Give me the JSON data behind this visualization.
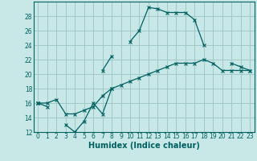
{
  "xlabel": "Humidex (Indice chaleur)",
  "bg_color": "#c8e8e8",
  "grid_color": "#a0c8c8",
  "line_color": "#006060",
  "x_values": [
    0,
    1,
    2,
    3,
    4,
    5,
    6,
    7,
    8,
    9,
    10,
    11,
    12,
    13,
    14,
    15,
    16,
    17,
    18,
    19,
    20,
    21,
    22,
    23
  ],
  "line1": [
    16.0,
    15.5,
    null,
    13.0,
    12.0,
    13.5,
    16.0,
    14.5,
    18.0,
    null,
    null,
    null,
    null,
    null,
    null,
    null,
    null,
    null,
    null,
    null,
    null,
    null,
    null,
    null
  ],
  "line2": [
    16.0,
    null,
    null,
    null,
    null,
    null,
    null,
    20.5,
    22.5,
    null,
    24.5,
    26.0,
    29.2,
    29.0,
    28.5,
    28.5,
    28.5,
    27.5,
    24.0,
    null,
    null,
    21.5,
    21.0,
    20.5
  ],
  "line3": [
    16.0,
    16.0,
    16.5,
    14.5,
    14.5,
    15.0,
    15.5,
    17.0,
    18.0,
    18.5,
    19.0,
    19.5,
    20.0,
    20.5,
    21.0,
    21.5,
    21.5,
    21.5,
    22.0,
    21.5,
    20.5,
    20.5,
    20.5,
    20.5
  ],
  "ylim": [
    12,
    30
  ],
  "xlim": [
    -0.5,
    23.5
  ],
  "yticks": [
    12,
    14,
    16,
    18,
    20,
    22,
    24,
    26,
    28
  ],
  "xticks": [
    0,
    1,
    2,
    3,
    4,
    5,
    6,
    7,
    8,
    9,
    10,
    11,
    12,
    13,
    14,
    15,
    16,
    17,
    18,
    19,
    20,
    21,
    22,
    23
  ],
  "tick_fontsize": 5.5,
  "xlabel_fontsize": 7
}
